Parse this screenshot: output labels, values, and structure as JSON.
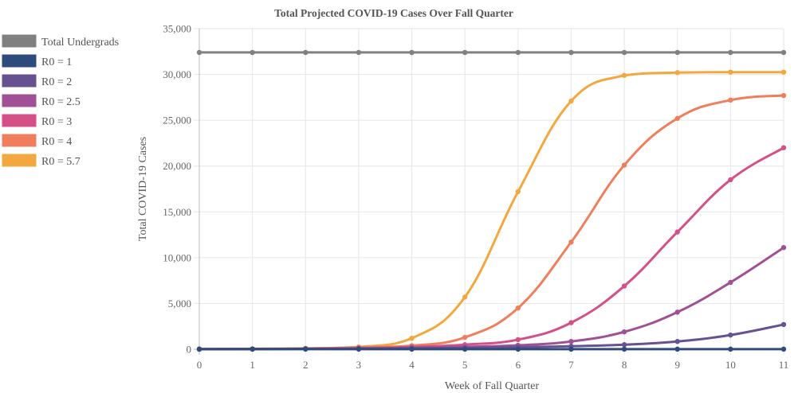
{
  "chart_data": {
    "type": "line",
    "title": "Total Projected COVID-19 Cases Over Fall Quarter",
    "xlabel": "Week of Fall Quarter",
    "ylabel": "Total COVID-19 Cases",
    "x": [
      0,
      1,
      2,
      3,
      4,
      5,
      6,
      7,
      8,
      9,
      10,
      11
    ],
    "xlim": [
      0,
      11
    ],
    "ylim": [
      0,
      35000
    ],
    "yticks": [
      "0",
      "5,000",
      "10,000",
      "15,000",
      "20,000",
      "25,000",
      "30,000",
      "35,000"
    ],
    "xticks": [
      "0",
      "1",
      "2",
      "3",
      "4",
      "5",
      "6",
      "7",
      "8",
      "9",
      "10",
      "11"
    ],
    "grid": true,
    "legend_position": "left",
    "series": [
      {
        "name": "Total Undergrads",
        "color": "#808080",
        "values": [
          32400,
          32400,
          32400,
          32400,
          32400,
          32400,
          32400,
          32400,
          32400,
          32400,
          32400,
          32400
        ]
      },
      {
        "name": "R0 = 1",
        "color": "#2f4b7c",
        "values": [
          10,
          10,
          10,
          10,
          10,
          10,
          10,
          10,
          10,
          10,
          10,
          10
        ]
      },
      {
        "name": "R0 = 2",
        "color": "#665191",
        "values": [
          10,
          20,
          40,
          60,
          100,
          150,
          230,
          330,
          500,
          850,
          1550,
          2700
        ]
      },
      {
        "name": "R0 = 2.5",
        "color": "#a05195",
        "values": [
          10,
          25,
          50,
          80,
          150,
          270,
          430,
          850,
          1900,
          4050,
          7300,
          11100
        ]
      },
      {
        "name": "R0 = 3",
        "color": "#d45087",
        "values": [
          10,
          30,
          60,
          120,
          250,
          500,
          1050,
          2900,
          6900,
          12800,
          18500,
          22000
        ]
      },
      {
        "name": "R0 = 4",
        "color": "#f07e5c",
        "values": [
          10,
          40,
          80,
          200,
          400,
          1300,
          4500,
          11700,
          20100,
          25200,
          27200,
          27700
        ]
      },
      {
        "name": "R0 = 5.7",
        "color": "#f3a83f",
        "values": [
          10,
          50,
          100,
          250,
          1200,
          5700,
          17200,
          27100,
          29900,
          30200,
          30250,
          30250
        ]
      }
    ]
  }
}
